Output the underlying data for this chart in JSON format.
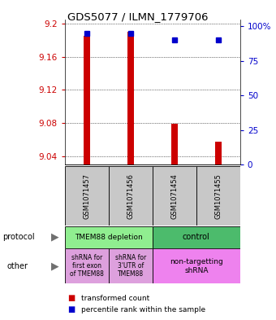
{
  "title": "GDS5077 / ILMN_1779706",
  "samples": [
    "GSM1071457",
    "GSM1071456",
    "GSM1071454",
    "GSM1071455"
  ],
  "red_values": [
    9.185,
    9.19,
    9.079,
    9.058
  ],
  "blue_values": [
    95,
    95,
    90,
    90
  ],
  "y_min": 9.03,
  "y_max": 9.205,
  "y_ticks": [
    9.04,
    9.08,
    9.12,
    9.16,
    9.2
  ],
  "right_y_ticks": [
    0,
    25,
    50,
    75,
    100
  ],
  "right_y_labels": [
    "0",
    "25",
    "50",
    "75",
    "100%"
  ],
  "protocol_labels": [
    "TMEM88 depletion",
    "control"
  ],
  "other_labels_left1": "shRNA for\nfirst exon\nof TMEM88",
  "other_labels_left2": "shRNA for\n3'UTR of\nTMEM88",
  "other_labels_right": "non-targetting\nshRNA",
  "protocol_color_left": "#90EE90",
  "protocol_color_right": "#4CBB6C",
  "other_color_left": "#DDA0DD",
  "other_color_right": "#EE82EE",
  "sample_bg": "#C8C8C8",
  "bar_color": "#CC0000",
  "dot_color": "#0000CC",
  "label_color_left": "#CC0000",
  "label_color_right": "#0000CC",
  "bg_color": "#FFFFFF",
  "legend_red": "transformed count",
  "legend_blue": "percentile rank within the sample",
  "bar_width": 0.15
}
